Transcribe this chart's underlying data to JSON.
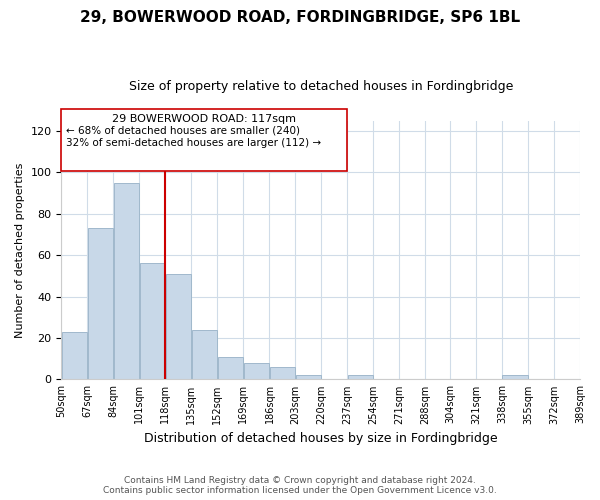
{
  "title": "29, BOWERWOOD ROAD, FORDINGBRIDGE, SP6 1BL",
  "subtitle": "Size of property relative to detached houses in Fordingbridge",
  "xlabel": "Distribution of detached houses by size in Fordingbridge",
  "ylabel": "Number of detached properties",
  "bar_edges": [
    50,
    67,
    84,
    101,
    118,
    135,
    152,
    169,
    186,
    203,
    220,
    237,
    254,
    271,
    288,
    304,
    321,
    338,
    355,
    372,
    389
  ],
  "bar_heights": [
    23,
    73,
    95,
    56,
    51,
    24,
    11,
    8,
    6,
    2,
    0,
    2,
    0,
    0,
    0,
    0,
    0,
    2,
    0,
    0
  ],
  "bar_color": "#c8d8e8",
  "bar_edgecolor": "#a0b8cc",
  "vline_x": 118,
  "vline_color": "#cc0000",
  "ylim": [
    0,
    125
  ],
  "yticks": [
    0,
    20,
    40,
    60,
    80,
    100,
    120
  ],
  "annotation_title": "29 BOWERWOOD ROAD: 117sqm",
  "annotation_line1": "← 68% of detached houses are smaller (240)",
  "annotation_line2": "32% of semi-detached houses are larger (112) →",
  "footer_line1": "Contains HM Land Registry data © Crown copyright and database right 2024.",
  "footer_line2": "Contains public sector information licensed under the Open Government Licence v3.0.",
  "background_color": "#ffffff",
  "grid_color": "#d0dce8",
  "tick_labels": [
    "50sqm",
    "67sqm",
    "84sqm",
    "101sqm",
    "118sqm",
    "135sqm",
    "152sqm",
    "169sqm",
    "186sqm",
    "203sqm",
    "220sqm",
    "237sqm",
    "254sqm",
    "271sqm",
    "288sqm",
    "304sqm",
    "321sqm",
    "338sqm",
    "355sqm",
    "372sqm",
    "389sqm"
  ]
}
